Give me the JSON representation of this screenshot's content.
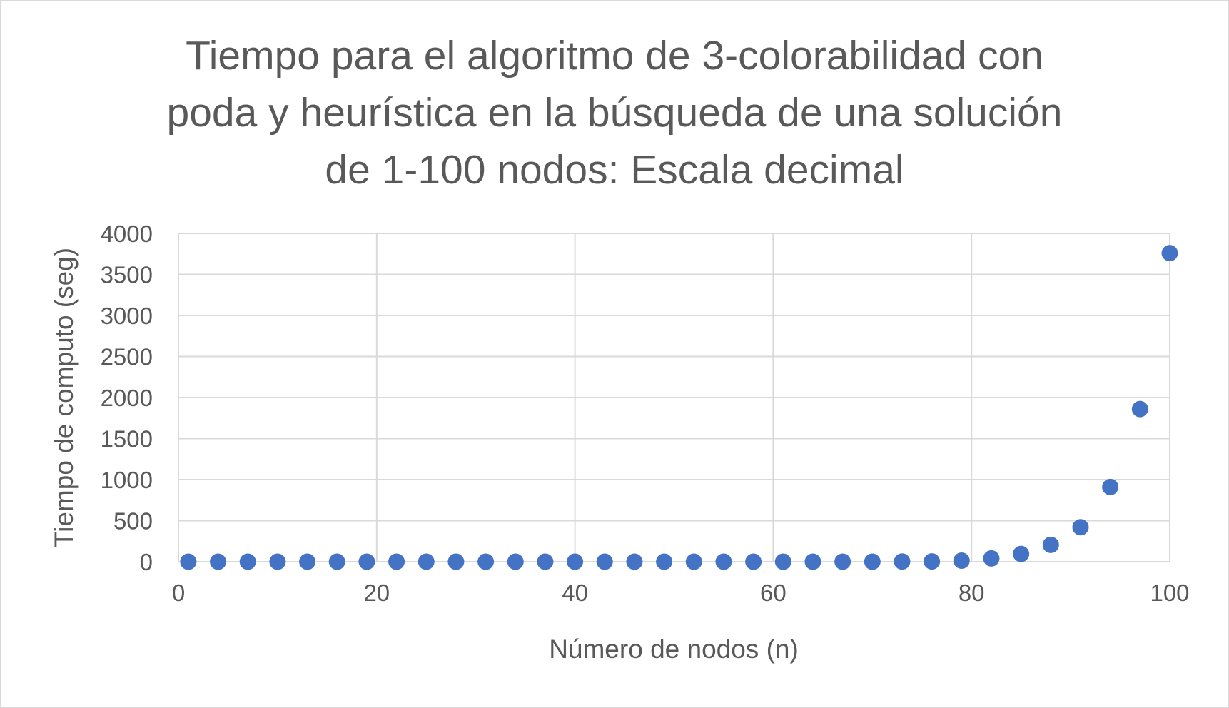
{
  "chart_data": {
    "type": "scatter",
    "title_lines": [
      "Tiempo para el algoritmo de 3-colorabilidad con",
      "poda y heurística en la búsqueda de una solución",
      "de 1-100 nodos: Escala decimal"
    ],
    "xlabel": "Número de nodos (n)",
    "ylabel": "Tiempo de computo (seg)",
    "xlim": [
      0,
      100
    ],
    "ylim": [
      0,
      4000
    ],
    "x_ticks": [
      0,
      20,
      40,
      60,
      80,
      100
    ],
    "y_ticks": [
      0,
      500,
      1000,
      1500,
      2000,
      2500,
      3000,
      3500,
      4000
    ],
    "grid": true,
    "legend": "none",
    "marker_color": "#4472c4",
    "series": [
      {
        "x": [
          1,
          4,
          7,
          10,
          13,
          16,
          19,
          22,
          25,
          28,
          31,
          34,
          37,
          40,
          43,
          46,
          49,
          52,
          55,
          58,
          61,
          64,
          67,
          70,
          73,
          76,
          79,
          82,
          85,
          88,
          91,
          94,
          97,
          100
        ],
        "y": [
          0,
          0,
          0,
          0,
          0,
          0,
          0,
          0,
          0,
          0,
          0,
          0,
          0,
          0,
          0,
          0,
          0,
          0,
          0,
          0,
          0,
          0,
          0,
          0,
          2,
          3,
          13,
          40,
          95,
          205,
          420,
          910,
          1860,
          3760
        ]
      }
    ]
  }
}
